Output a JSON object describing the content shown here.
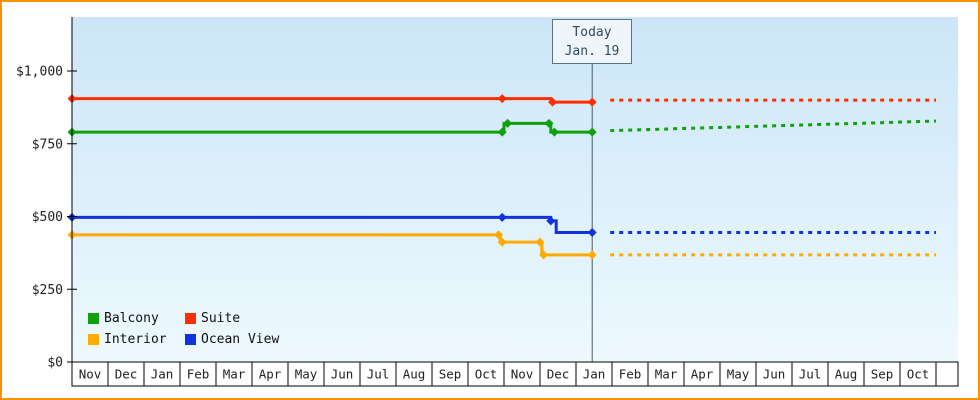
{
  "window": {
    "border_color": "#ff9100"
  },
  "today_marker": {
    "line1": "Today",
    "line2": "Jan. 19"
  },
  "legend": [
    {
      "label": "Balcony",
      "color": "#10a010"
    },
    {
      "label": "Suite",
      "color": "#ff2d00"
    },
    {
      "label": "Interior",
      "color": "#ffaa00"
    },
    {
      "label": "Ocean View",
      "color": "#1133dd"
    }
  ],
  "chart_data": {
    "type": "line",
    "title": "",
    "xlabel": "",
    "ylabel": "",
    "grid": false,
    "legend_position": "bottom-left",
    "ylim": [
      0,
      1185
    ],
    "y_ticks": [
      0,
      250,
      500,
      750,
      1000
    ],
    "y_tick_labels": [
      "$0",
      "$250",
      "$500",
      "$750",
      "$1,000"
    ],
    "x_tick_labels": [
      "Nov",
      "Dec",
      "Jan",
      "Feb",
      "Mar",
      "Apr",
      "May",
      "Jun",
      "Jul",
      "Aug",
      "Sep",
      "Oct",
      "Nov",
      "Dec",
      "Jan",
      "Feb",
      "Mar",
      "Apr",
      "May",
      "Jun",
      "Jul",
      "Aug",
      "Sep",
      "Oct"
    ],
    "today": {
      "month_index": 14.45
    },
    "series": [
      {
        "name": "Balcony",
        "color": "#10a010",
        "path": [
          [
            0,
            790
          ],
          [
            12,
            790
          ],
          [
            12,
            820
          ],
          [
            13.3,
            820
          ],
          [
            13.3,
            790
          ],
          [
            14.45,
            790
          ]
        ],
        "markers": [
          [
            0,
            790
          ],
          [
            11.95,
            790
          ],
          [
            12.1,
            820
          ],
          [
            13.25,
            820
          ],
          [
            13.4,
            790
          ],
          [
            14.45,
            790
          ]
        ],
        "forecast": [
          [
            14.95,
            795
          ],
          [
            24,
            828
          ]
        ]
      },
      {
        "name": "Suite",
        "color": "#ff2d00",
        "path": [
          [
            0,
            905
          ],
          [
            13.3,
            905
          ],
          [
            13.3,
            893
          ],
          [
            14.45,
            893
          ]
        ],
        "markers": [
          [
            0,
            905
          ],
          [
            11.95,
            905
          ],
          [
            13.35,
            893
          ],
          [
            14.45,
            893
          ]
        ],
        "forecast": [
          [
            14.95,
            900
          ],
          [
            24,
            900
          ]
        ]
      },
      {
        "name": "Interior",
        "color": "#ffaa00",
        "path": [
          [
            0,
            437
          ],
          [
            11.9,
            437
          ],
          [
            11.9,
            412
          ],
          [
            13.05,
            412
          ],
          [
            13.05,
            368
          ],
          [
            14.45,
            368
          ]
        ],
        "markers": [
          [
            0,
            437
          ],
          [
            11.85,
            437
          ],
          [
            11.95,
            412
          ],
          [
            13.0,
            412
          ],
          [
            13.1,
            368
          ],
          [
            14.45,
            368
          ]
        ],
        "forecast": [
          [
            14.95,
            368
          ],
          [
            24,
            368
          ]
        ]
      },
      {
        "name": "Ocean View",
        "color": "#1133dd",
        "path": [
          [
            0,
            497
          ],
          [
            13.3,
            497
          ],
          [
            13.3,
            485
          ],
          [
            13.45,
            485
          ],
          [
            13.45,
            445
          ],
          [
            14.45,
            445
          ]
        ],
        "markers": [
          [
            0,
            497
          ],
          [
            11.95,
            497
          ],
          [
            13.3,
            485
          ],
          [
            14.45,
            445
          ]
        ],
        "forecast": [
          [
            14.95,
            445
          ],
          [
            24,
            445
          ]
        ]
      }
    ]
  }
}
